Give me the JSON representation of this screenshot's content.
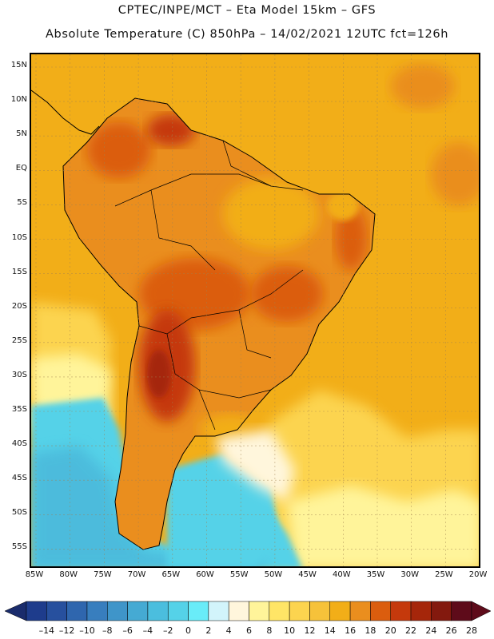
{
  "header": {
    "line1": "CPTEC/INPE/MCT –  Eta Model 15km – GFS",
    "line2": "Absolute Temperature (C) 850hPa – 14/02/2021 12UTC fct=126h"
  },
  "map": {
    "lat_labels": [
      "15N",
      "10N",
      "5N",
      "EQ",
      "5S",
      "10S",
      "15S",
      "20S",
      "25S",
      "30S",
      "35S",
      "40S",
      "45S",
      "50S",
      "55S"
    ],
    "lon_labels": [
      "85W",
      "80W",
      "75W",
      "70W",
      "65W",
      "60W",
      "55W",
      "50W",
      "45W",
      "40W",
      "35W",
      "30W",
      "25W",
      "20W"
    ],
    "gridlines": true
  },
  "colorbar": {
    "labels": [
      "-14",
      "-12",
      "-10",
      "-8",
      "-6",
      "-4",
      "-2",
      "0",
      "2",
      "4",
      "6",
      "8",
      "10",
      "12",
      "14",
      "16",
      "18",
      "20",
      "22",
      "24",
      "26",
      "28"
    ],
    "colors": [
      "#1e3c8c",
      "#27509e",
      "#2f66ae",
      "#387ebe",
      "#3f95c9",
      "#45aad3",
      "#4bbede",
      "#55d2e8",
      "#69ecf8",
      "#d2f4fb",
      "#fff6dc",
      "#fff49a",
      "#ffe566",
      "#fcd44f",
      "#f6c23a",
      "#f2ae18",
      "#ea8e1e",
      "#db5d0e",
      "#c5390c",
      "#a5260a",
      "#83190e",
      "#5e0b1a"
    ],
    "left_arrow_color": "#1a2c6c",
    "right_arrow_color": "#5e0b1a"
  },
  "regions": {
    "ocean_warm": "#f2ae18",
    "ocean_cool": "#fcd44f",
    "pale": "#fff49a",
    "cold": "#55d2e8",
    "hot": "#db5d0e",
    "hotter": "#c5390c"
  }
}
